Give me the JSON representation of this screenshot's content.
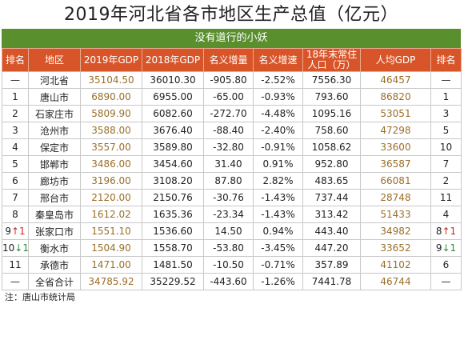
{
  "title": "2019年河北省各市地区生产总值（亿元）",
  "subtitle": "没有道行的小妖",
  "headers": [
    "排名",
    "地区",
    "2019年GDP",
    "2018年GDP",
    "名义增量",
    "名义增速",
    "18年末常住人口（万）",
    "人均GDP",
    "排名"
  ],
  "rows": [
    {
      "rank": "—",
      "arrow1": "",
      "region": "河北省",
      "gdp2019": "35104.50",
      "gdp2018": "36010.30",
      "increase": "-905.80",
      "growth": "-2.52%",
      "population": "7556.30",
      "per_capita": "46457",
      "rank2": "—",
      "arrow2": ""
    },
    {
      "rank": "1",
      "arrow1": "",
      "region": "唐山市",
      "gdp2019": "6890.00",
      "gdp2018": "6955.00",
      "increase": "-65.00",
      "growth": "-0.93%",
      "population": "793.60",
      "per_capita": "86820",
      "rank2": "1",
      "arrow2": ""
    },
    {
      "rank": "2",
      "arrow1": "",
      "region": "石家庄市",
      "gdp2019": "5809.90",
      "gdp2018": "6082.60",
      "increase": "-272.70",
      "growth": "-4.48%",
      "population": "1095.16",
      "per_capita": "53051",
      "rank2": "3",
      "arrow2": ""
    },
    {
      "rank": "3",
      "arrow1": "",
      "region": "沧州市",
      "gdp2019": "3588.00",
      "gdp2018": "3676.40",
      "increase": "-88.40",
      "growth": "-2.40%",
      "population": "758.60",
      "per_capita": "47298",
      "rank2": "5",
      "arrow2": ""
    },
    {
      "rank": "4",
      "arrow1": "",
      "region": "保定市",
      "gdp2019": "3557.00",
      "gdp2018": "3589.80",
      "increase": "-32.80",
      "growth": "-0.91%",
      "population": "1058.62",
      "per_capita": "33600",
      "rank2": "10",
      "arrow2": ""
    },
    {
      "rank": "5",
      "arrow1": "",
      "region": "邯郸市",
      "gdp2019": "3486.00",
      "gdp2018": "3454.60",
      "increase": "31.40",
      "growth": "0.91%",
      "population": "952.80",
      "per_capita": "36587",
      "rank2": "7",
      "arrow2": ""
    },
    {
      "rank": "6",
      "arrow1": "",
      "region": "廊坊市",
      "gdp2019": "3196.00",
      "gdp2018": "3108.20",
      "increase": "87.80",
      "growth": "2.82%",
      "population": "483.65",
      "per_capita": "66081",
      "rank2": "2",
      "arrow2": ""
    },
    {
      "rank": "7",
      "arrow1": "",
      "region": "邢台市",
      "gdp2019": "2120.00",
      "gdp2018": "2150.76",
      "increase": "-30.76",
      "growth": "-1.43%",
      "population": "737.44",
      "per_capita": "28748",
      "rank2": "11",
      "arrow2": ""
    },
    {
      "rank": "8",
      "arrow1": "",
      "region": "秦皇岛市",
      "gdp2019": "1612.02",
      "gdp2018": "1635.36",
      "increase": "-23.34",
      "growth": "-1.43%",
      "population": "313.42",
      "per_capita": "51433",
      "rank2": "4",
      "arrow2": ""
    },
    {
      "rank": "9",
      "arrow1": "↑1",
      "arrow1_class": "up",
      "region": "张家口市",
      "gdp2019": "1551.10",
      "gdp2018": "1536.60",
      "increase": "14.50",
      "growth": "0.94%",
      "population": "443.40",
      "per_capita": "34982",
      "rank2": "8",
      "arrow2": "↑1",
      "arrow2_class": "up"
    },
    {
      "rank": "10",
      "arrow1": "↓1",
      "arrow1_class": "down",
      "region": "衡水市",
      "gdp2019": "1504.90",
      "gdp2018": "1558.70",
      "increase": "-53.80",
      "growth": "-3.45%",
      "population": "447.20",
      "per_capita": "33652",
      "rank2": "9",
      "arrow2": "↓1",
      "arrow2_class": "down"
    },
    {
      "rank": "11",
      "arrow1": "",
      "region": "承德市",
      "gdp2019": "1471.00",
      "gdp2018": "1481.50",
      "increase": "-10.50",
      "growth": "-0.71%",
      "population": "357.89",
      "per_capita": "41102",
      "rank2": "6",
      "arrow2": ""
    },
    {
      "rank": "—",
      "arrow1": "",
      "region": "全省合计",
      "gdp2019": "34785.92",
      "gdp2018": "35229.52",
      "increase": "-443.60",
      "growth": "-1.26%",
      "population": "7441.78",
      "per_capita": "46744",
      "rank2": "—",
      "arrow2": ""
    }
  ],
  "note": "注：唐山市统计局",
  "colors": {
    "header_bg": "#d8552a",
    "subtitle_bg": "#5a8f2e",
    "value_text": "#9a6e2a",
    "up": "#d0281e",
    "down": "#2e8a3a"
  }
}
